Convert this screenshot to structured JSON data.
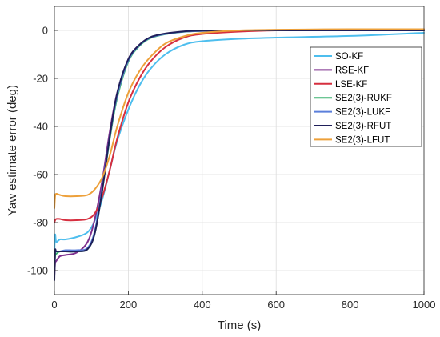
{
  "chart_data": {
    "type": "line",
    "title": "",
    "xlabel": "Time (s)",
    "ylabel": "Yaw estimate error (deg)",
    "xlim": [
      0,
      1000
    ],
    "ylim": [
      -110,
      10
    ],
    "xticks": [
      0,
      200,
      400,
      600,
      800,
      1000
    ],
    "yticks": [
      -100,
      -80,
      -60,
      -40,
      -20,
      0
    ],
    "grid": true,
    "legend_position": "right",
    "series": [
      {
        "name": "SO-KF",
        "color": "#4DBEEE",
        "x": [
          0,
          2,
          5,
          15,
          30,
          60,
          90,
          110,
          130,
          150,
          170,
          200,
          230,
          260,
          300,
          350,
          400,
          500,
          600,
          800,
          1000
        ],
        "y": [
          -92,
          -85,
          -88,
          -87,
          -87,
          -86,
          -84,
          -79,
          -70,
          -58,
          -46,
          -33,
          -23,
          -16,
          -10,
          -6,
          -4.5,
          -3.5,
          -3,
          -2.3,
          -1
        ]
      },
      {
        "name": "RSE-KF",
        "color": "#7E2F8E",
        "x": [
          0,
          2,
          5,
          15,
          30,
          60,
          90,
          110,
          130,
          150,
          170,
          200,
          230,
          260,
          300,
          350,
          400,
          500,
          600,
          800,
          1000
        ],
        "y": [
          -102,
          -97,
          -96,
          -94,
          -93.5,
          -92.5,
          -88,
          -78,
          -62,
          -42,
          -26,
          -12,
          -6,
          -3,
          -1.5,
          -0.5,
          -0.2,
          0,
          0,
          0,
          0
        ]
      },
      {
        "name": "LSE-KF",
        "color": "#D62F3F",
        "x": [
          0,
          2,
          5,
          15,
          30,
          60,
          90,
          110,
          130,
          150,
          170,
          200,
          230,
          260,
          300,
          350,
          400,
          500,
          600,
          800,
          1000
        ],
        "y": [
          -80,
          -79,
          -78.5,
          -78.5,
          -79,
          -79,
          -78.5,
          -76,
          -69,
          -58,
          -45,
          -30,
          -20,
          -13,
          -7,
          -3,
          -1.5,
          -0.5,
          0,
          0.3,
          0.5
        ]
      },
      {
        "name": "SE2(3)-RUKF",
        "color": "#3CB371",
        "x": [
          0,
          2,
          5,
          15,
          30,
          60,
          90,
          110,
          130,
          150,
          170,
          200,
          230,
          260,
          300,
          350,
          400,
          500,
          600,
          800,
          1000
        ],
        "y": [
          -100,
          -94,
          -93,
          -92,
          -92,
          -92,
          -91,
          -84,
          -66,
          -45,
          -28,
          -13,
          -6.5,
          -3.2,
          -1.6,
          -0.6,
          -0.2,
          0,
          0,
          0,
          0
        ]
      },
      {
        "name": "SE2(3)-LUKF",
        "color": "#5B7FDB",
        "x": [
          0,
          2,
          5,
          15,
          30,
          60,
          90,
          110,
          130,
          150,
          170,
          200,
          230,
          260,
          300,
          350,
          400,
          500,
          600,
          800,
          1000
        ],
        "y": [
          -96,
          -92,
          -92,
          -92,
          -91.5,
          -91.5,
          -90.5,
          -83,
          -65,
          -44,
          -27,
          -12.5,
          -6.2,
          -3,
          -1.5,
          -0.5,
          -0.2,
          0,
          0,
          0,
          0
        ]
      },
      {
        "name": "SE2(3)-RFUT",
        "color": "#1F1F5A",
        "x": [
          0,
          2,
          5,
          15,
          30,
          60,
          90,
          110,
          130,
          150,
          170,
          200,
          230,
          260,
          300,
          350,
          400,
          500,
          600,
          800,
          1000
        ],
        "y": [
          -104,
          -92,
          -92,
          -92,
          -92,
          -92,
          -91,
          -84,
          -66,
          -44,
          -26,
          -12,
          -6,
          -2.8,
          -1.3,
          -0.4,
          -0.1,
          0,
          0,
          0,
          0
        ]
      },
      {
        "name": "SE2(3)-LFUT",
        "color": "#EDA03A",
        "x": [
          0,
          2,
          5,
          15,
          30,
          60,
          90,
          110,
          130,
          150,
          170,
          200,
          230,
          260,
          300,
          350,
          400,
          500,
          600,
          800,
          1000
        ],
        "y": [
          -74,
          -69,
          -68,
          -68.5,
          -69,
          -69,
          -68.5,
          -66,
          -61,
          -52,
          -40,
          -26,
          -17,
          -11,
          -5.5,
          -2.5,
          -1,
          0,
          0.3,
          0.5,
          0.5
        ]
      }
    ]
  }
}
